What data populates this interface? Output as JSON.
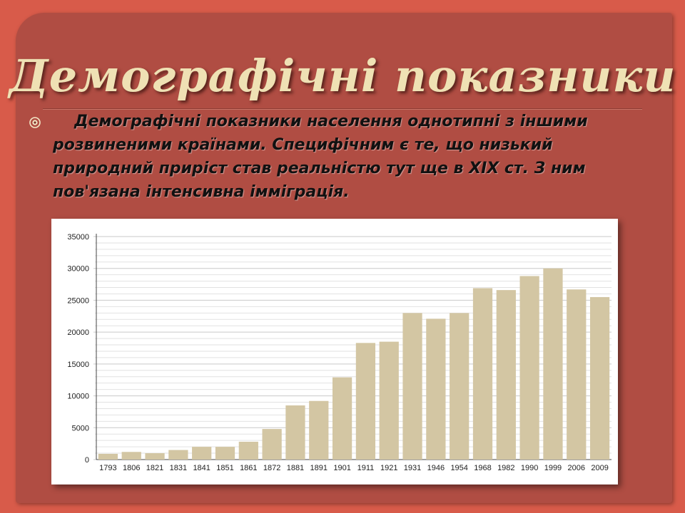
{
  "slide": {
    "title": "Демографічні показники",
    "bullet_icon": "circle-bullet-icon",
    "paragraph": "Демографічні показники населення однотипні з іншими розвиненими країнами. Специфічним є те, що низький природний приріст став реальністю тут ще в XIX ст. З ним пов'язана інтенсивна імміграція."
  },
  "colors": {
    "background": "#d85b4a",
    "panel": "#b04d43",
    "title": "#efe1b4",
    "bar": "#d3c6a3"
  },
  "chart_data": {
    "type": "bar",
    "title": "",
    "xlabel": "",
    "ylabel": "",
    "categories": [
      "1793",
      "1806",
      "1821",
      "1831",
      "1841",
      "1851",
      "1861",
      "1872",
      "1881",
      "1891",
      "1901",
      "1911",
      "1921",
      "1931",
      "1946",
      "1954",
      "1968",
      "1982",
      "1990",
      "1999",
      "2006",
      "2009"
    ],
    "values": [
      900,
      1200,
      1000,
      1500,
      2000,
      2000,
      2800,
      4800,
      8500,
      9200,
      12900,
      18300,
      18500,
      23000,
      22100,
      23000,
      26900,
      26600,
      28800,
      30000,
      26700,
      25500
    ],
    "yticks": [
      0,
      5000,
      10000,
      15000,
      20000,
      25000,
      30000,
      35000
    ],
    "ylim": [
      0,
      35000
    ],
    "grid": true,
    "legend": "none"
  }
}
